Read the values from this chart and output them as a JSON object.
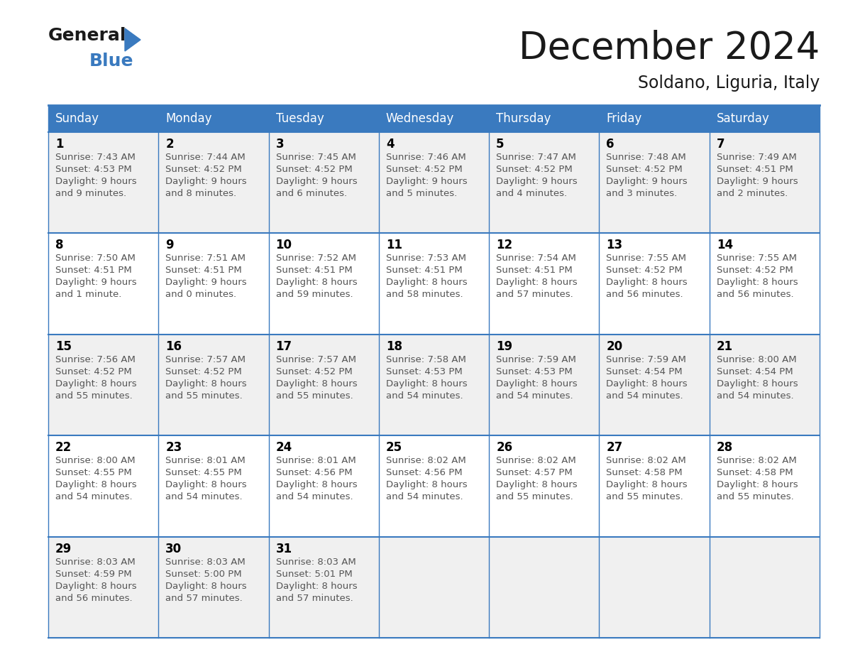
{
  "title": "December 2024",
  "subtitle": "Soldano, Liguria, Italy",
  "header_bg": "#3a7abf",
  "header_text_color": "#ffffff",
  "days_of_week": [
    "Sunday",
    "Monday",
    "Tuesday",
    "Wednesday",
    "Thursday",
    "Friday",
    "Saturday"
  ],
  "odd_row_bg": "#f0f0f0",
  "even_row_bg": "#ffffff",
  "cell_border_color": "#3a7abf",
  "day_num_color": "#000000",
  "cell_text_color": "#555555",
  "calendar": [
    [
      {
        "day": "1",
        "sunrise": "7:43 AM",
        "sunset": "4:53 PM",
        "dl_line1": "Daylight: 9 hours",
        "dl_line2": "and 9 minutes."
      },
      {
        "day": "2",
        "sunrise": "7:44 AM",
        "sunset": "4:52 PM",
        "dl_line1": "Daylight: 9 hours",
        "dl_line2": "and 8 minutes."
      },
      {
        "day": "3",
        "sunrise": "7:45 AM",
        "sunset": "4:52 PM",
        "dl_line1": "Daylight: 9 hours",
        "dl_line2": "and 6 minutes."
      },
      {
        "day": "4",
        "sunrise": "7:46 AM",
        "sunset": "4:52 PM",
        "dl_line1": "Daylight: 9 hours",
        "dl_line2": "and 5 minutes."
      },
      {
        "day": "5",
        "sunrise": "7:47 AM",
        "sunset": "4:52 PM",
        "dl_line1": "Daylight: 9 hours",
        "dl_line2": "and 4 minutes."
      },
      {
        "day": "6",
        "sunrise": "7:48 AM",
        "sunset": "4:52 PM",
        "dl_line1": "Daylight: 9 hours",
        "dl_line2": "and 3 minutes."
      },
      {
        "day": "7",
        "sunrise": "7:49 AM",
        "sunset": "4:51 PM",
        "dl_line1": "Daylight: 9 hours",
        "dl_line2": "and 2 minutes."
      }
    ],
    [
      {
        "day": "8",
        "sunrise": "7:50 AM",
        "sunset": "4:51 PM",
        "dl_line1": "Daylight: 9 hours",
        "dl_line2": "and 1 minute."
      },
      {
        "day": "9",
        "sunrise": "7:51 AM",
        "sunset": "4:51 PM",
        "dl_line1": "Daylight: 9 hours",
        "dl_line2": "and 0 minutes."
      },
      {
        "day": "10",
        "sunrise": "7:52 AM",
        "sunset": "4:51 PM",
        "dl_line1": "Daylight: 8 hours",
        "dl_line2": "and 59 minutes."
      },
      {
        "day": "11",
        "sunrise": "7:53 AM",
        "sunset": "4:51 PM",
        "dl_line1": "Daylight: 8 hours",
        "dl_line2": "and 58 minutes."
      },
      {
        "day": "12",
        "sunrise": "7:54 AM",
        "sunset": "4:51 PM",
        "dl_line1": "Daylight: 8 hours",
        "dl_line2": "and 57 minutes."
      },
      {
        "day": "13",
        "sunrise": "7:55 AM",
        "sunset": "4:52 PM",
        "dl_line1": "Daylight: 8 hours",
        "dl_line2": "and 56 minutes."
      },
      {
        "day": "14",
        "sunrise": "7:55 AM",
        "sunset": "4:52 PM",
        "dl_line1": "Daylight: 8 hours",
        "dl_line2": "and 56 minutes."
      }
    ],
    [
      {
        "day": "15",
        "sunrise": "7:56 AM",
        "sunset": "4:52 PM",
        "dl_line1": "Daylight: 8 hours",
        "dl_line2": "and 55 minutes."
      },
      {
        "day": "16",
        "sunrise": "7:57 AM",
        "sunset": "4:52 PM",
        "dl_line1": "Daylight: 8 hours",
        "dl_line2": "and 55 minutes."
      },
      {
        "day": "17",
        "sunrise": "7:57 AM",
        "sunset": "4:52 PM",
        "dl_line1": "Daylight: 8 hours",
        "dl_line2": "and 55 minutes."
      },
      {
        "day": "18",
        "sunrise": "7:58 AM",
        "sunset": "4:53 PM",
        "dl_line1": "Daylight: 8 hours",
        "dl_line2": "and 54 minutes."
      },
      {
        "day": "19",
        "sunrise": "7:59 AM",
        "sunset": "4:53 PM",
        "dl_line1": "Daylight: 8 hours",
        "dl_line2": "and 54 minutes."
      },
      {
        "day": "20",
        "sunrise": "7:59 AM",
        "sunset": "4:54 PM",
        "dl_line1": "Daylight: 8 hours",
        "dl_line2": "and 54 minutes."
      },
      {
        "day": "21",
        "sunrise": "8:00 AM",
        "sunset": "4:54 PM",
        "dl_line1": "Daylight: 8 hours",
        "dl_line2": "and 54 minutes."
      }
    ],
    [
      {
        "day": "22",
        "sunrise": "8:00 AM",
        "sunset": "4:55 PM",
        "dl_line1": "Daylight: 8 hours",
        "dl_line2": "and 54 minutes."
      },
      {
        "day": "23",
        "sunrise": "8:01 AM",
        "sunset": "4:55 PM",
        "dl_line1": "Daylight: 8 hours",
        "dl_line2": "and 54 minutes."
      },
      {
        "day": "24",
        "sunrise": "8:01 AM",
        "sunset": "4:56 PM",
        "dl_line1": "Daylight: 8 hours",
        "dl_line2": "and 54 minutes."
      },
      {
        "day": "25",
        "sunrise": "8:02 AM",
        "sunset": "4:56 PM",
        "dl_line1": "Daylight: 8 hours",
        "dl_line2": "and 54 minutes."
      },
      {
        "day": "26",
        "sunrise": "8:02 AM",
        "sunset": "4:57 PM",
        "dl_line1": "Daylight: 8 hours",
        "dl_line2": "and 55 minutes."
      },
      {
        "day": "27",
        "sunrise": "8:02 AM",
        "sunset": "4:58 PM",
        "dl_line1": "Daylight: 8 hours",
        "dl_line2": "and 55 minutes."
      },
      {
        "day": "28",
        "sunrise": "8:02 AM",
        "sunset": "4:58 PM",
        "dl_line1": "Daylight: 8 hours",
        "dl_line2": "and 55 minutes."
      }
    ],
    [
      {
        "day": "29",
        "sunrise": "8:03 AM",
        "sunset": "4:59 PM",
        "dl_line1": "Daylight: 8 hours",
        "dl_line2": "and 56 minutes."
      },
      {
        "day": "30",
        "sunrise": "8:03 AM",
        "sunset": "5:00 PM",
        "dl_line1": "Daylight: 8 hours",
        "dl_line2": "and 57 minutes."
      },
      {
        "day": "31",
        "sunrise": "8:03 AM",
        "sunset": "5:01 PM",
        "dl_line1": "Daylight: 8 hours",
        "dl_line2": "and 57 minutes."
      },
      null,
      null,
      null,
      null
    ]
  ]
}
